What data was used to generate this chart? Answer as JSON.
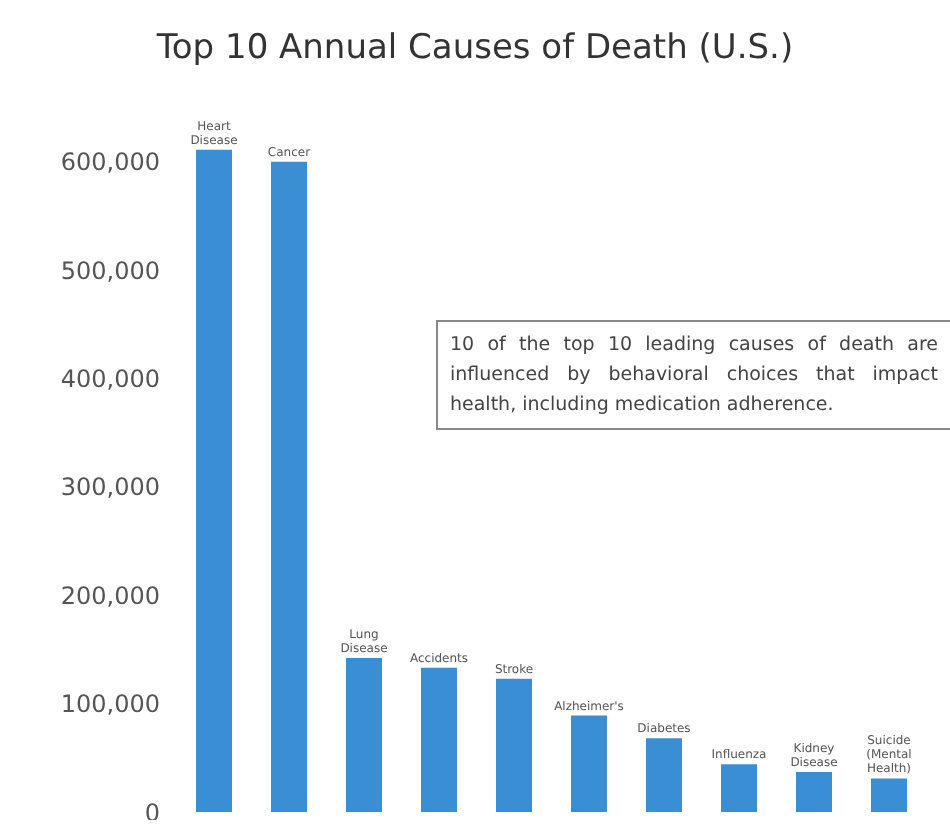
{
  "chart_data": {
    "type": "bar",
    "title": "Top 10 Annual Causes of Death (U.S.)",
    "categories": [
      "Heart Disease",
      "Cancer",
      "Lung Disease",
      "Accidents",
      "Stroke",
      "Alzheimer's",
      "Diabetes",
      "Influenza",
      "Kidney Disease",
      "Suicide (Mental Health)"
    ],
    "values": [
      611000,
      600000,
      142000,
      133000,
      123000,
      89000,
      68000,
      44000,
      37000,
      31000
    ],
    "color": "#3a8fd4",
    "ylim": [
      0,
      620000
    ],
    "yticks": [
      0,
      {
        "value": 100000,
        "label": "100,000"
      },
      {
        "value": 200000,
        "label": "200,000"
      },
      {
        "value": 300000,
        "label": "300,000"
      },
      {
        "value": 400000,
        "label": "400,000"
      },
      {
        "value": 500000,
        "label": "500,000"
      },
      {
        "value": 600000,
        "label": "600,000"
      }
    ],
    "grid": false,
    "annotations": [
      "10 of the top 10 leading causes of death are influenced by  behavioral choices that impact health, including medication adherence."
    ]
  }
}
